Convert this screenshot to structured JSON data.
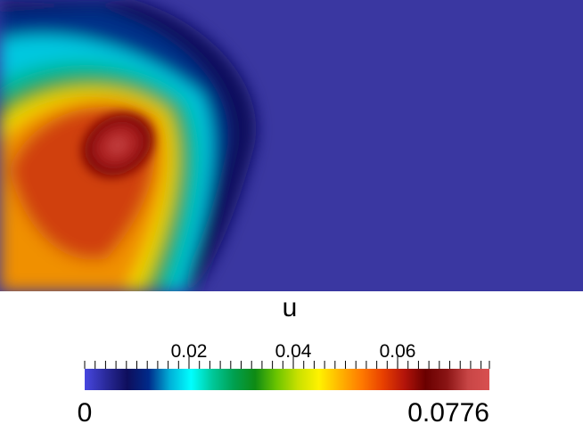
{
  "field": {
    "background_color": "#3a37a1",
    "colormap": [
      "#4747e0",
      "#2a2a9a",
      "#0e0e5c",
      "#002a8a",
      "#00b0d8",
      "#00ffff",
      "#00c89a",
      "#00a050",
      "#0e8a14",
      "#6ac400",
      "#c8e000",
      "#fff200",
      "#ffb400",
      "#ff7a00",
      "#e84000",
      "#b4140a",
      "#6a0000",
      "#8a1414",
      "#c84646",
      "#d85050"
    ]
  },
  "legend": {
    "title": "u",
    "range_min": 0,
    "range_max": 0.0776,
    "min_label": "0",
    "max_label": "0.0776",
    "tick_labels": [
      {
        "value": 0.02,
        "text": "0.02"
      },
      {
        "value": 0.04,
        "text": "0.04"
      },
      {
        "value": 0.06,
        "text": "0.06"
      }
    ],
    "minor_tick_step": 0.002
  }
}
